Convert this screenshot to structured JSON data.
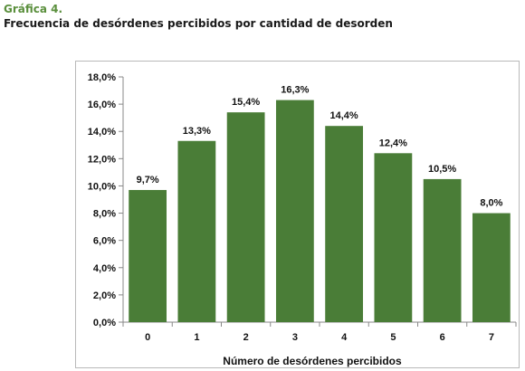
{
  "figure": {
    "label": "Gráfica 4.",
    "title": "Frecuencia de desórdenes percibidos por cantidad de desorden"
  },
  "chart_data": {
    "type": "bar",
    "title": "",
    "xlabel": "Número de desórdenes percibidos",
    "ylabel": "",
    "categories": [
      "0",
      "1",
      "2",
      "3",
      "4",
      "5",
      "6",
      "7"
    ],
    "values": [
      9.7,
      13.3,
      15.4,
      16.3,
      14.4,
      12.4,
      10.5,
      8.0
    ],
    "data_labels": [
      "9,7%",
      "13,3%",
      "15,4%",
      "16,3%",
      "14,4%",
      "12,4%",
      "10,5%",
      "8,0%"
    ],
    "ylim": [
      0,
      18
    ],
    "yticks": [
      0,
      2,
      4,
      6,
      8,
      10,
      12,
      14,
      16,
      18
    ],
    "ytick_labels": [
      "0,0%",
      "2,0%",
      "4,0%",
      "6,0%",
      "8,0%",
      "10,0%",
      "12,0%",
      "14,0%",
      "16,0%",
      "18,0%"
    ],
    "bar_color": "#4a7d37",
    "grid": false,
    "legend": "none"
  }
}
